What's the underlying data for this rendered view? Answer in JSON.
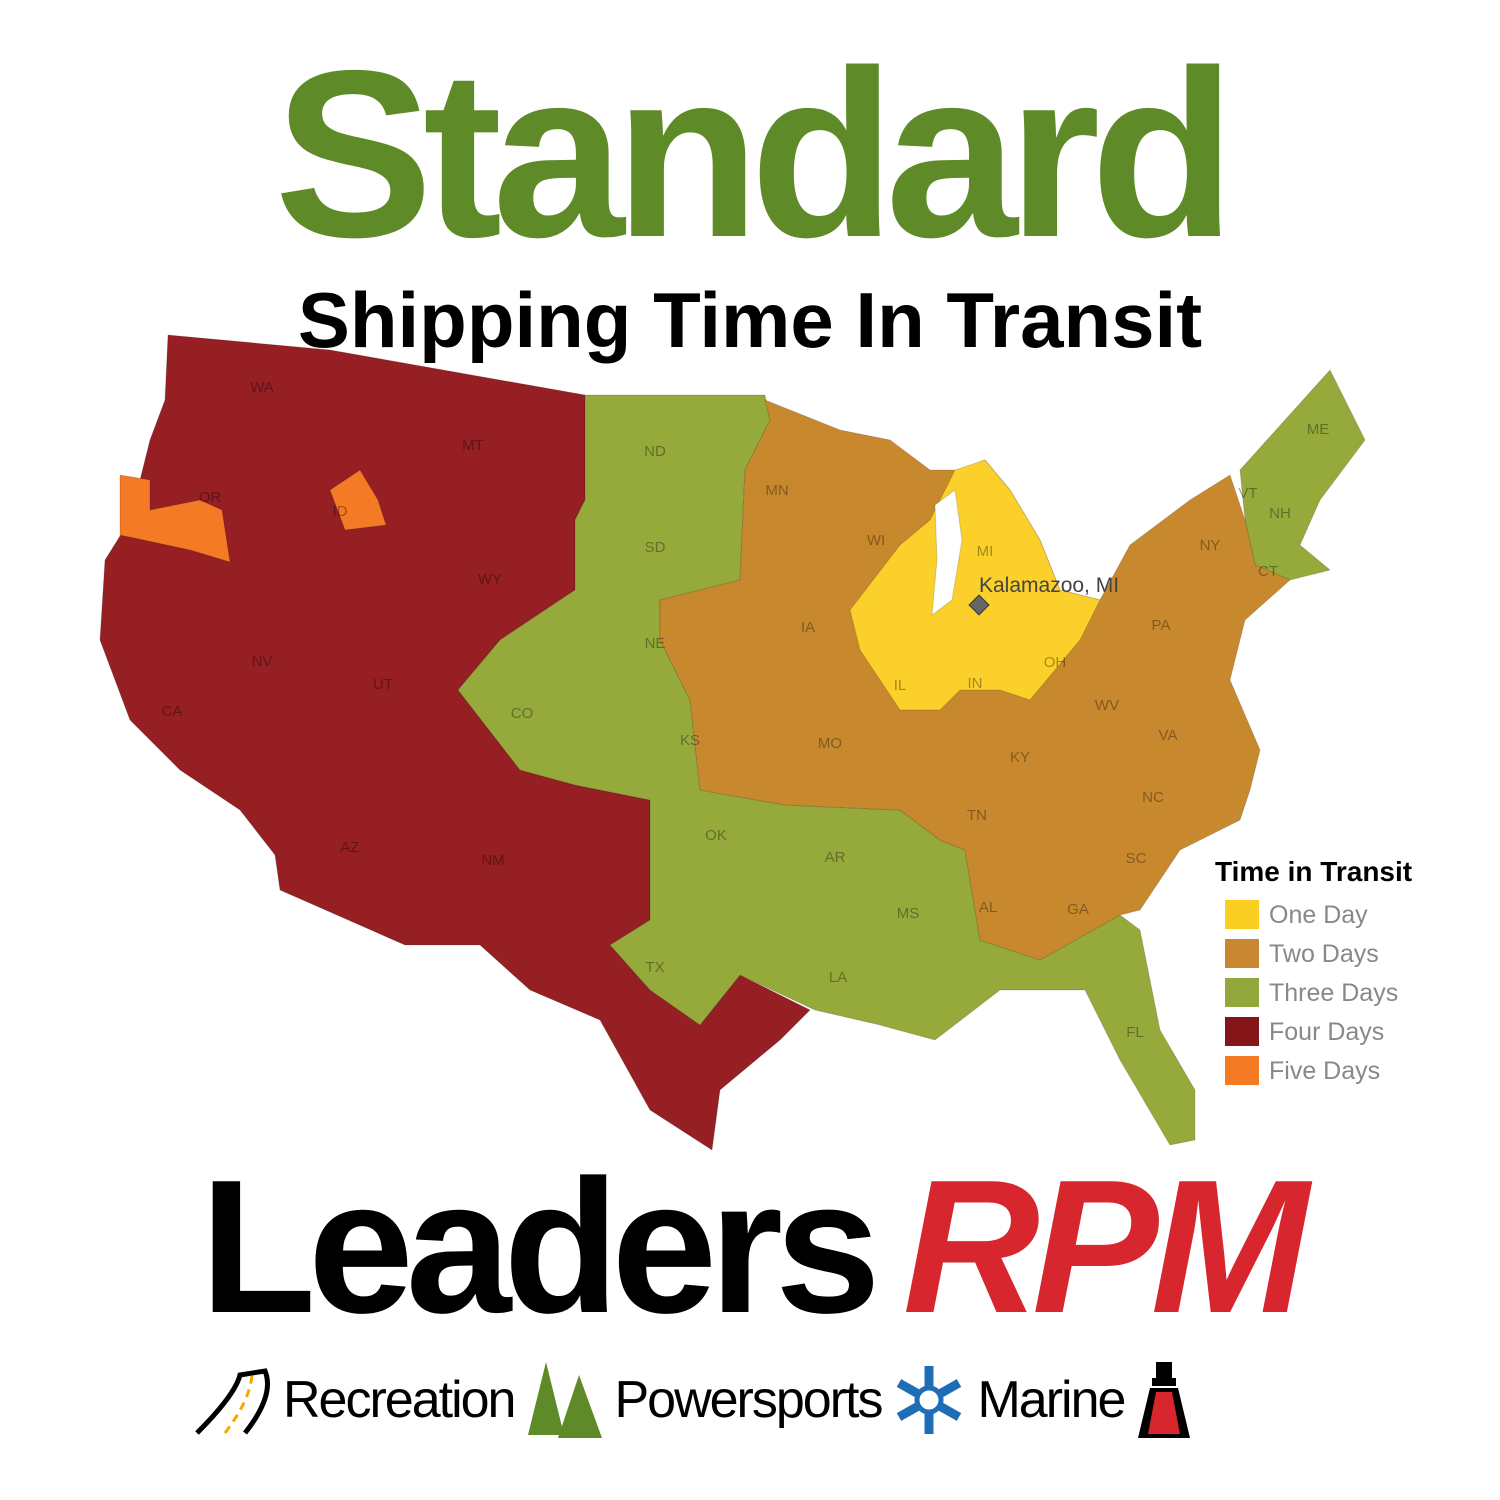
{
  "header": {
    "title": "Standard",
    "subtitle": "Shipping Time In Transit"
  },
  "map": {
    "origin_label": "Kalamazoo, MI",
    "state_labels": [
      "WA",
      "OR",
      "CA",
      "NV",
      "ID",
      "MT",
      "WY",
      "UT",
      "AZ",
      "NM",
      "CO",
      "ND",
      "SD",
      "NE",
      "KS",
      "OK",
      "TX",
      "MN",
      "IA",
      "MO",
      "AR",
      "LA",
      "WI",
      "IL",
      "MI",
      "IN",
      "OH",
      "KY",
      "TN",
      "MS",
      "AL",
      "GA",
      "FL",
      "SC",
      "NC",
      "VA",
      "WV",
      "PA",
      "NY",
      "VT",
      "NH",
      "ME",
      "CT"
    ],
    "colors": {
      "one_day": "#fbd02a",
      "two_days": "#c8892e",
      "three_days": "#96aa3c",
      "four_days": "#951f22",
      "five_days": "#f47a26"
    }
  },
  "legend": {
    "title": "Time in Transit",
    "items": [
      {
        "label": "One Day",
        "color": "#fbcf22"
      },
      {
        "label": "Two Days",
        "color": "#c88730"
      },
      {
        "label": "Three Days",
        "color": "#93a83c"
      },
      {
        "label": "Four Days",
        "color": "#84161a"
      },
      {
        "label": "Five Days",
        "color": "#f47a24"
      }
    ]
  },
  "brand": {
    "name": "Leaders",
    "accent": "RPM",
    "accent_color": "#d7262d",
    "divisions": [
      {
        "label": "Recreation",
        "icon": "road-icon"
      },
      {
        "label": "Powersports",
        "icon": "pine-trees-icon"
      },
      {
        "label": "Marine",
        "icon": "snowflake-icon"
      }
    ],
    "end_icon": "lighthouse-icon"
  }
}
